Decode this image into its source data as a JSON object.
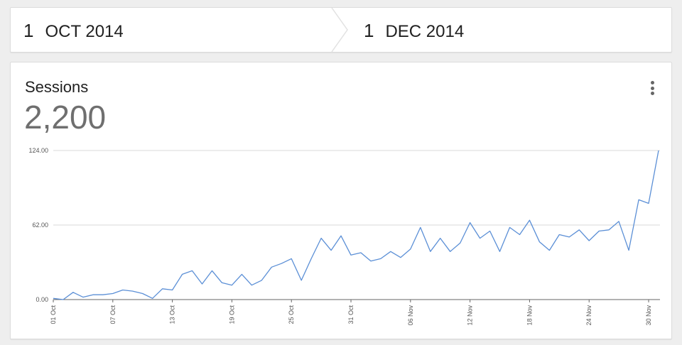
{
  "date_range": {
    "start": {
      "day": "1",
      "month_year": "OCT 2014"
    },
    "end": {
      "day": "1",
      "month_year": "DEC 2014"
    }
  },
  "metric_card": {
    "title": "Sessions",
    "value": "2,200",
    "menu_icon": "more-vert-icon"
  },
  "colors": {
    "line": "#5b8fd6",
    "grid": "#d9d9d9",
    "axis": "#666666"
  },
  "chart_data": {
    "type": "line",
    "title": "",
    "xlabel": "",
    "ylabel": "",
    "ylim": [
      0,
      124
    ],
    "y_ticks": [
      "0.00",
      "62.00",
      "124.00"
    ],
    "x_ticks": [
      {
        "index": 0,
        "label": "01 Oct"
      },
      {
        "index": 6,
        "label": "07 Oct"
      },
      {
        "index": 12,
        "label": "13 Oct"
      },
      {
        "index": 18,
        "label": "19 Oct"
      },
      {
        "index": 24,
        "label": "25 Oct"
      },
      {
        "index": 30,
        "label": "31 Oct"
      },
      {
        "index": 36,
        "label": "06 Nov"
      },
      {
        "index": 42,
        "label": "12 Nov"
      },
      {
        "index": 48,
        "label": "18 Nov"
      },
      {
        "index": 54,
        "label": "24 Nov"
      },
      {
        "index": 60,
        "label": "30 Nov"
      }
    ],
    "series": [
      {
        "values": [
          1,
          0,
          6,
          2,
          4,
          4,
          5,
          8,
          7,
          5,
          1,
          9,
          8,
          21,
          24,
          13,
          24,
          14,
          12,
          21,
          12,
          16,
          27,
          30,
          34,
          16,
          34,
          51,
          41,
          53,
          37,
          39,
          32,
          34,
          40,
          35,
          42,
          60,
          40,
          51,
          40,
          47,
          64,
          51,
          57,
          40,
          60,
          54,
          66,
          48,
          41,
          54,
          52,
          58,
          49,
          57,
          58,
          65,
          41,
          83,
          80,
          124
        ]
      }
    ]
  }
}
